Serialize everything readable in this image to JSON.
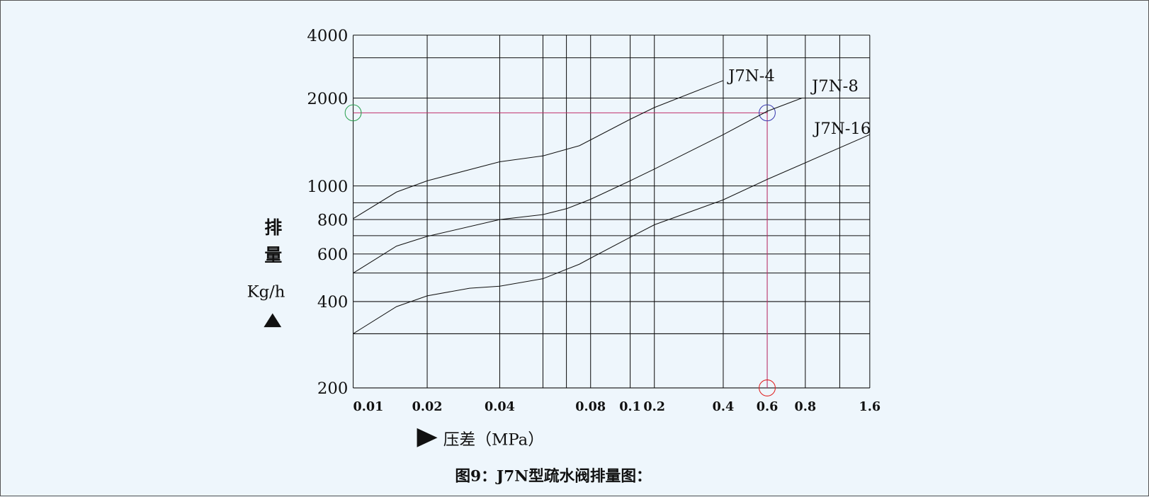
{
  "chart_data": {
    "type": "line",
    "title": "图9：J7N型疏水阀排量图：",
    "xlabel": "压差（MPa）",
    "ylabel_chars": [
      "排",
      "量"
    ],
    "ylabel_unit": "Kg/h",
    "x_ticks": [
      "0.01",
      "0.02",
      "0.04",
      "0.08",
      "0.1",
      "0.2",
      "0.4",
      "0.6",
      "0.8",
      "1.6"
    ],
    "y_ticks": [
      "200",
      "400",
      "600",
      "800",
      "1000",
      "2000",
      "4000"
    ],
    "x_scale": "log (non-uniform)",
    "y_scale": "log (non-uniform)",
    "xlim": [
      0.01,
      1.6
    ],
    "ylim": [
      200,
      4000
    ],
    "grid": true,
    "series": [
      {
        "name": "J7N-4",
        "x": [
          0.01,
          0.015,
          0.02,
          0.04,
          0.0556,
          0.0735,
          0.1,
          0.2,
          0.4
        ],
        "y": [
          805,
          960,
          1041,
          1210,
          1267,
          1374,
          1692,
          1856,
          2427
        ]
      },
      {
        "name": "J7N-8",
        "x": [
          0.01,
          0.015,
          0.02,
          0.04,
          0.0556,
          0.0669,
          0.08,
          0.1,
          0.2,
          0.4,
          0.6,
          0.78
        ],
        "y": [
          510,
          641,
          695,
          800,
          827,
          861,
          915,
          1041,
          1142,
          1498,
          1802,
          2000
        ]
      },
      {
        "name": "J7N-16",
        "x": [
          0.01,
          0.015,
          0.02,
          0.03,
          0.04,
          0.0556,
          0.0735,
          0.08,
          0.1,
          0.2,
          0.4,
          0.6,
          1.6
        ],
        "y": [
          309,
          384,
          420,
          448,
          456,
          486,
          550,
          579,
          690,
          766,
          912,
          1053,
          1498
        ]
      }
    ],
    "reference": {
      "x": 0.6,
      "y": 1780,
      "line_color": "#c0306a",
      "markers": [
        {
          "at": "y-axis",
          "color": "#2aa050"
        },
        {
          "at": "intersection",
          "color": "#3a3ab0"
        },
        {
          "at": "x-axis",
          "color": "#e02020"
        }
      ]
    },
    "background": "#eef6fc"
  }
}
